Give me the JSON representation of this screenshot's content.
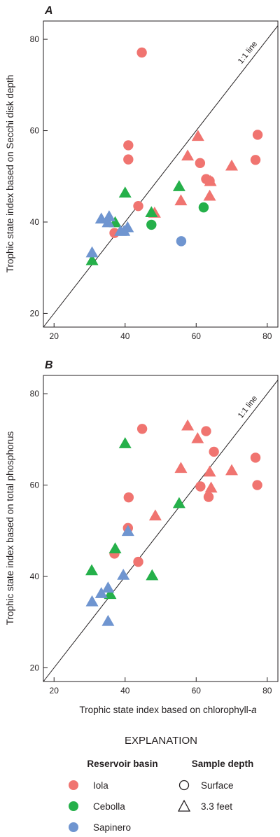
{
  "colors": {
    "Iola": "#f07470",
    "Cebolla": "#25b04a",
    "Sapinero": "#6f95d0",
    "axis": "#231f20"
  },
  "legend": {
    "title": "EXPLANATION",
    "basin_title": "Reservoir basin",
    "depth_title": "Sample depth",
    "basins": [
      "Iola",
      "Cebolla",
      "Sapinero"
    ],
    "depths": [
      "Surface",
      "3.3 feet"
    ]
  },
  "chart_data": [
    {
      "type": "scatter",
      "panel": "A",
      "xlabel": "",
      "ylabel": "Trophic state index based on Secchi disk depth",
      "xlim": [
        17,
        83
      ],
      "ylim": [
        17,
        84
      ],
      "xticks": [
        20,
        40,
        60,
        80
      ],
      "yticks": [
        20,
        40,
        60,
        80
      ],
      "reference_line": {
        "label": "1:1 line"
      },
      "series": [
        {
          "name": "Iola",
          "marker": "circle",
          "points": [
            [
              44.7,
              77.1
            ],
            [
              40.9,
              56.8
            ],
            [
              40.9,
              53.7
            ],
            [
              43.7,
              43.5
            ],
            [
              37.0,
              37.6
            ],
            [
              61.1,
              52.9
            ],
            [
              62.8,
              49.4
            ],
            [
              63.8,
              49.0
            ],
            [
              77.3,
              59.1
            ],
            [
              76.7,
              53.6
            ]
          ]
        },
        {
          "name": "Iola",
          "marker": "triangle",
          "points": [
            [
              60.5,
              58.8
            ],
            [
              57.6,
              54.5
            ],
            [
              64.0,
              48.9
            ],
            [
              70.0,
              52.3
            ],
            [
              48.3,
              42.0
            ],
            [
              55.7,
              44.7
            ],
            [
              63.8,
              45.7
            ]
          ]
        },
        {
          "name": "Cebolla",
          "marker": "circle",
          "points": [
            [
              47.4,
              39.4
            ],
            [
              62.1,
              43.2
            ]
          ]
        },
        {
          "name": "Cebolla",
          "marker": "triangle",
          "points": [
            [
              40.0,
              46.4
            ],
            [
              47.4,
              42.1
            ],
            [
              55.2,
              47.8
            ],
            [
              37.2,
              39.9
            ],
            [
              30.7,
              31.6
            ]
          ]
        },
        {
          "name": "Sapinero",
          "marker": "circle",
          "points": [
            [
              55.8,
              35.8
            ]
          ]
        },
        {
          "name": "Sapinero",
          "marker": "triangle",
          "points": [
            [
              33.3,
              40.7
            ],
            [
              35.5,
              41.2
            ],
            [
              35.2,
              39.9
            ],
            [
              38.7,
              38.0
            ],
            [
              39.7,
              38.0
            ],
            [
              40.7,
              38.8
            ],
            [
              30.7,
              33.3
            ]
          ]
        }
      ]
    },
    {
      "type": "scatter",
      "panel": "B",
      "xlabel": "Trophic state index based on chlorophyll-a",
      "ylabel": "Trophic state index based on total phosphorus",
      "xlim": [
        17,
        83
      ],
      "ylim": [
        17,
        84
      ],
      "xticks": [
        20,
        40,
        60,
        80
      ],
      "yticks": [
        20,
        40,
        60,
        80
      ],
      "reference_line": {
        "label": "1:1 line"
      },
      "series": [
        {
          "name": "Iola",
          "marker": "circle",
          "points": [
            [
              44.8,
              72.3
            ],
            [
              62.8,
              71.8
            ],
            [
              65.0,
              67.3
            ],
            [
              76.7,
              66.0
            ],
            [
              77.2,
              60.0
            ],
            [
              61.2,
              59.7
            ],
            [
              63.5,
              57.4
            ],
            [
              41.0,
              57.3
            ],
            [
              40.8,
              50.6
            ],
            [
              43.7,
              43.2
            ],
            [
              37.0,
              45.0
            ]
          ]
        },
        {
          "name": "Iola",
          "marker": "triangle",
          "points": [
            [
              57.6,
              73.0
            ],
            [
              60.4,
              70.2
            ],
            [
              55.7,
              63.7
            ],
            [
              63.8,
              62.9
            ],
            [
              70.0,
              63.2
            ],
            [
              64.2,
              59.4
            ],
            [
              48.5,
              53.3
            ]
          ]
        },
        {
          "name": "Cebolla",
          "marker": "triangle",
          "points": [
            [
              40.0,
              69.1
            ],
            [
              55.2,
              56.0
            ],
            [
              37.2,
              46.1
            ],
            [
              30.6,
              41.3
            ],
            [
              47.6,
              40.2
            ],
            [
              35.8,
              36.1
            ]
          ]
        },
        {
          "name": "Sapinero",
          "marker": "triangle",
          "points": [
            [
              40.8,
              49.9
            ],
            [
              39.5,
              40.3
            ],
            [
              33.3,
              36.3
            ],
            [
              35.2,
              37.5
            ],
            [
              30.7,
              34.5
            ],
            [
              35.2,
              30.2
            ]
          ]
        }
      ]
    }
  ]
}
